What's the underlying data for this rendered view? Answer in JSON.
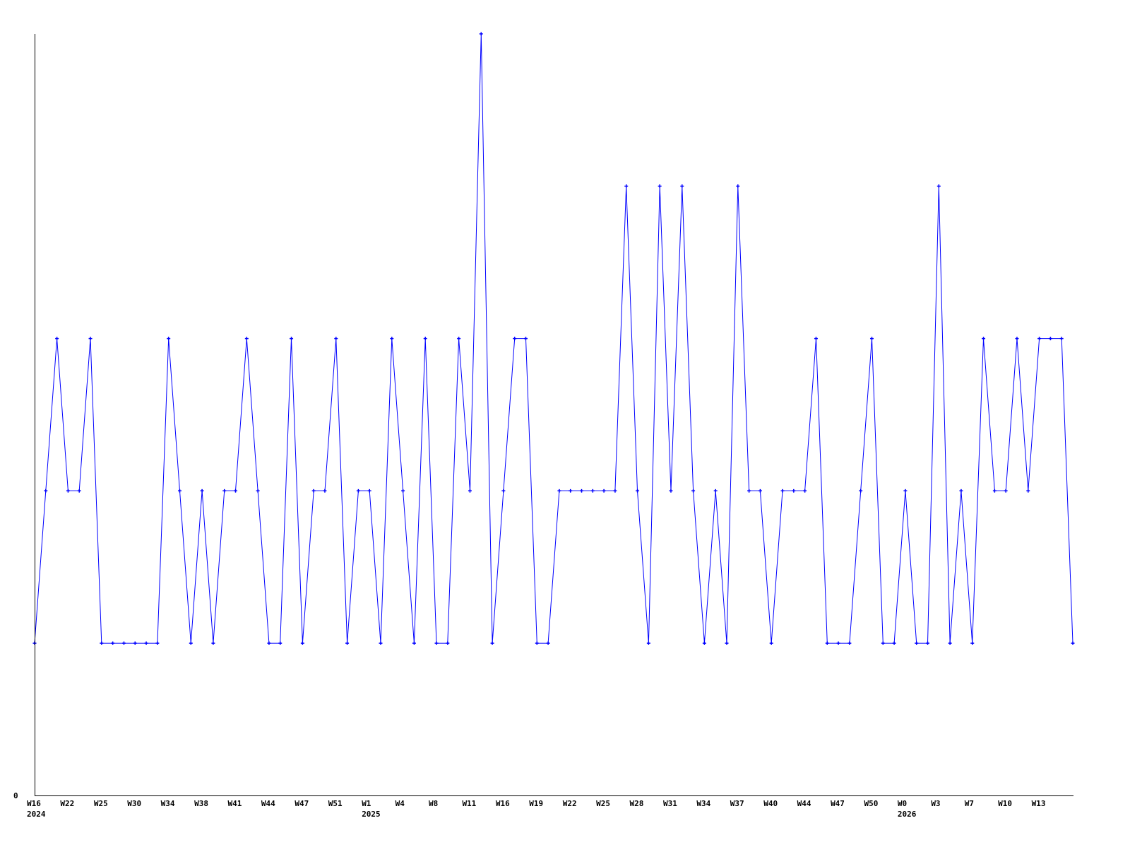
{
  "chart_data": {
    "type": "line",
    "title": "",
    "xlabel": "",
    "ylabel": "",
    "ylim": [
      0,
      5
    ],
    "y_tick_labels": [
      "0"
    ],
    "grid": false,
    "legend": "none",
    "line_color": "#0000ff",
    "axis_color": "#000000",
    "markers": "cross",
    "x_tick_labels": [
      {
        "label": "W16",
        "year": "2024"
      },
      {
        "label": "W22"
      },
      {
        "label": "W25"
      },
      {
        "label": "W30"
      },
      {
        "label": "W34"
      },
      {
        "label": "W38"
      },
      {
        "label": "W41"
      },
      {
        "label": "W44"
      },
      {
        "label": "W47"
      },
      {
        "label": "W51"
      },
      {
        "label": "W1",
        "year": "2025"
      },
      {
        "label": "W4"
      },
      {
        "label": "W8"
      },
      {
        "label": "W11"
      },
      {
        "label": "W16"
      },
      {
        "label": "W19"
      },
      {
        "label": "W22"
      },
      {
        "label": "W25"
      },
      {
        "label": "W28"
      },
      {
        "label": "W31"
      },
      {
        "label": "W34"
      },
      {
        "label": "W37"
      },
      {
        "label": "W40"
      },
      {
        "label": "W44"
      },
      {
        "label": "W47"
      },
      {
        "label": "W50"
      },
      {
        "label": "W0",
        "year": "2026"
      },
      {
        "label": "W3"
      },
      {
        "label": "W7"
      },
      {
        "label": "W10"
      },
      {
        "label": "W13"
      }
    ],
    "values": [
      1,
      2,
      3,
      2,
      2,
      3,
      1,
      1,
      1,
      1,
      1,
      1,
      3,
      2,
      1,
      2,
      1,
      2,
      2,
      3,
      2,
      1,
      1,
      3,
      1,
      2,
      2,
      3,
      1,
      2,
      2,
      1,
      3,
      2,
      1,
      3,
      1,
      1,
      3,
      2,
      5,
      1,
      2,
      3,
      3,
      1,
      1,
      2,
      2,
      2,
      2,
      2,
      2,
      4,
      2,
      1,
      4,
      2,
      4,
      2,
      1,
      2,
      1,
      4,
      2,
      2,
      1,
      2,
      2,
      2,
      3,
      1,
      1,
      1,
      2,
      3,
      1,
      1,
      2,
      1,
      1,
      4,
      1,
      2,
      1,
      3,
      2,
      2,
      3,
      2,
      3,
      3,
      3,
      1
    ]
  }
}
